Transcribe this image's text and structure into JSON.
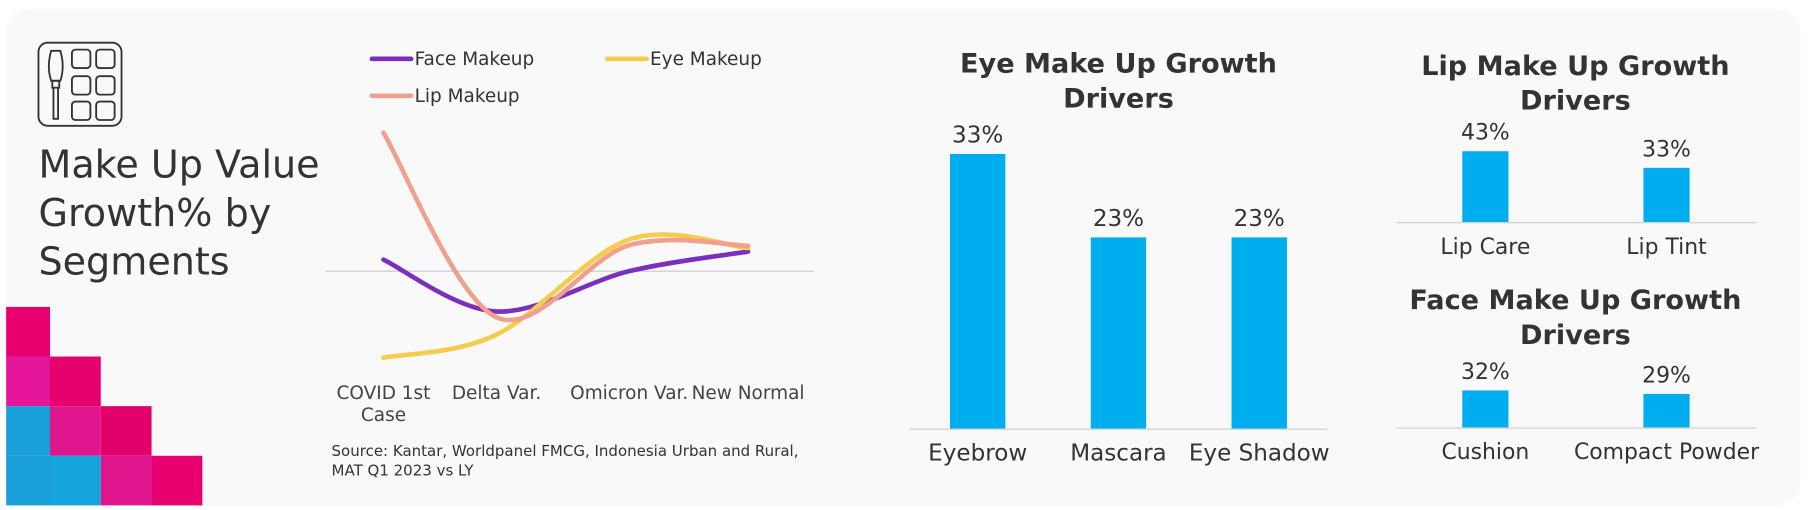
{
  "title": "Make Up Value Growth% by Segments",
  "source": "Source: Kantar, Worldpanel FMCG, Indonesia Urban and Rural, MAT Q1 2023 vs LY",
  "chart_data": [
    {
      "type": "line",
      "categories": [
        "COVID 1st Case",
        "Delta Var.",
        "Omicron Var.",
        "New Normal"
      ],
      "series": [
        {
          "name": "Face Makeup",
          "color": "#7b2fbe",
          "values": [
            2,
            -7,
            0,
            3.4
          ]
        },
        {
          "name": "Eye Makeup",
          "color": "#f5cc4c",
          "values": [
            -15,
            -11,
            5.5,
            4
          ]
        },
        {
          "name": "Lip Makeup",
          "color": "#f0a08c",
          "values": [
            24,
            -8,
            4.5,
            4.4
          ]
        }
      ],
      "ylim": [
        -17,
        27
      ],
      "legend": "top"
    },
    {
      "type": "bar",
      "title": "Eye Make Up Growth Drivers",
      "categories": [
        "Eyebrow",
        "Mascara",
        "Eye Shadow"
      ],
      "values": [
        33,
        23,
        23
      ],
      "value_labels": [
        "33%",
        "23%",
        "23%"
      ],
      "color": "#00adef",
      "ylim": [
        0,
        35
      ]
    },
    {
      "type": "bar",
      "title": "Lip Make Up Growth Drivers",
      "categories": [
        "Lip Care",
        "Lip Tint"
      ],
      "values": [
        43,
        33
      ],
      "value_labels": [
        "43%",
        "33%"
      ],
      "color": "#00adef",
      "ylim": [
        0,
        50
      ]
    },
    {
      "type": "bar",
      "title": "Face Make Up Growth Drivers",
      "categories": [
        "Cushion",
        "Compact Powder"
      ],
      "values": [
        32,
        29
      ],
      "value_labels": [
        "32%",
        "29%"
      ],
      "color": "#00adef",
      "ylim": [
        0,
        50
      ]
    }
  ]
}
